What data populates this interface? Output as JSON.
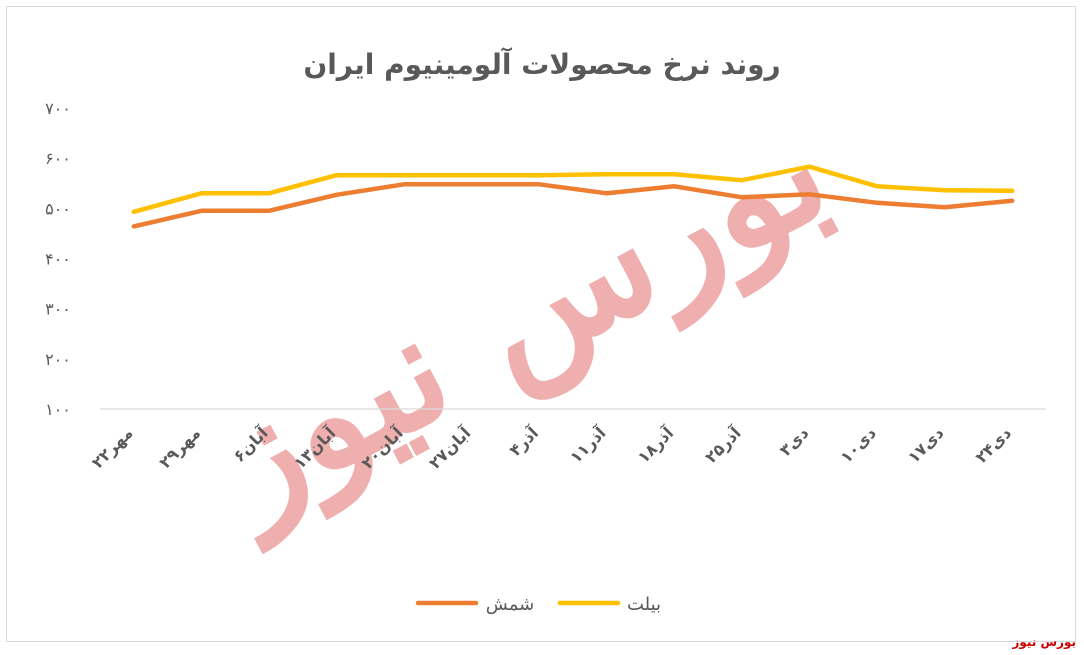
{
  "chart_data": {
    "type": "line",
    "title": "روند نرخ محصولات آلومینیوم ایران",
    "xlabel": "",
    "ylabel": "",
    "ylim": [
      100,
      700
    ],
    "yticks": [
      "۷۰۰",
      "۶۰۰",
      "۵۰۰",
      "۴۰۰",
      "۳۰۰",
      "۲۰۰",
      "۱۰۰"
    ],
    "ytick_values": [
      700,
      600,
      500,
      400,
      300,
      200,
      100
    ],
    "categories": [
      "۲۲مهر",
      "۲۹مهر",
      "۶آبان",
      "۱۳آبان",
      "۲۰آبان",
      "۲۷آبان",
      "۴آذر",
      "۱۱آذر",
      "۱۸آذر",
      "۲۵آذر",
      "۳دی",
      "۱۰دی",
      "۱۷دی",
      "۲۴دی"
    ],
    "series": [
      {
        "name": "شمش",
        "color": "#ed7d31",
        "values": [
          464,
          495,
          495,
          527,
          548,
          548,
          548,
          530,
          544,
          522,
          528,
          511,
          502,
          515
        ]
      },
      {
        "name": "بیلت",
        "color": "#ffc000",
        "values": [
          493,
          530,
          530,
          566,
          566,
          566,
          566,
          568,
          568,
          556,
          583,
          544,
          536,
          535
        ]
      }
    ],
    "legend_position": "bottom",
    "grid": false,
    "gridline": "#d9d9d9"
  },
  "watermark": "بورس نیوز",
  "source_label": "بورس نیوز"
}
